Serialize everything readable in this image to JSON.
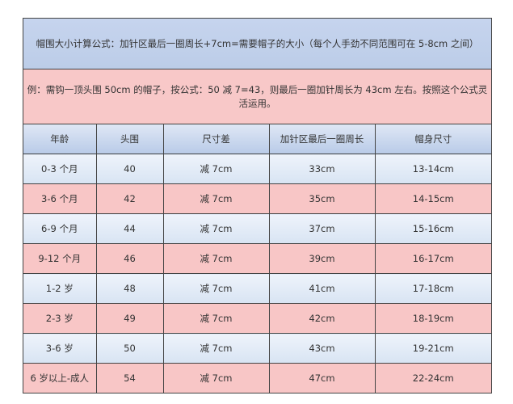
{
  "formula": "帽围大小计算公式：加针区最后一圈周长+7cm=需要帽子的大小（每个人手劲不同范围可在 5-8cm 之间）",
  "example": "例：需钩一顶头围 50cm 的帽子，按公式：50 减 7=43，则最后一圈加针周长为 43cm 左右。按照这个公式灵活运用。",
  "headers": [
    "年龄",
    "头围",
    "尺寸差",
    "加针区最后一圈周长",
    "帽身尺寸"
  ],
  "rows": [
    [
      "0-3 个月",
      "40",
      "减 7cm",
      "33cm",
      "13-14cm"
    ],
    [
      "3-6 个月",
      "42",
      "减 7cm",
      "35cm",
      "14-15cm"
    ],
    [
      "6-9 个月",
      "44",
      "减 7cm",
      "37cm",
      "15-16cm"
    ],
    [
      "9-12 个月",
      "46",
      "减 7cm",
      "39cm",
      "16-17cm"
    ],
    [
      "1-2 岁",
      "48",
      "减 7cm",
      "41cm",
      "17-18cm"
    ],
    [
      "2-3 岁",
      "49",
      "减 7cm",
      "42cm",
      "18-19cm"
    ],
    [
      "3-6 岁",
      "50",
      "减 7cm",
      "43cm",
      "19-21cm"
    ],
    [
      "6 岁以上-成人",
      "54",
      "减 7cm",
      "47cm",
      "22-24cm"
    ]
  ],
  "colors": {
    "blue_row": "#dbe5f4",
    "pink_row": "#f8c6c6",
    "border": "#444444"
  }
}
